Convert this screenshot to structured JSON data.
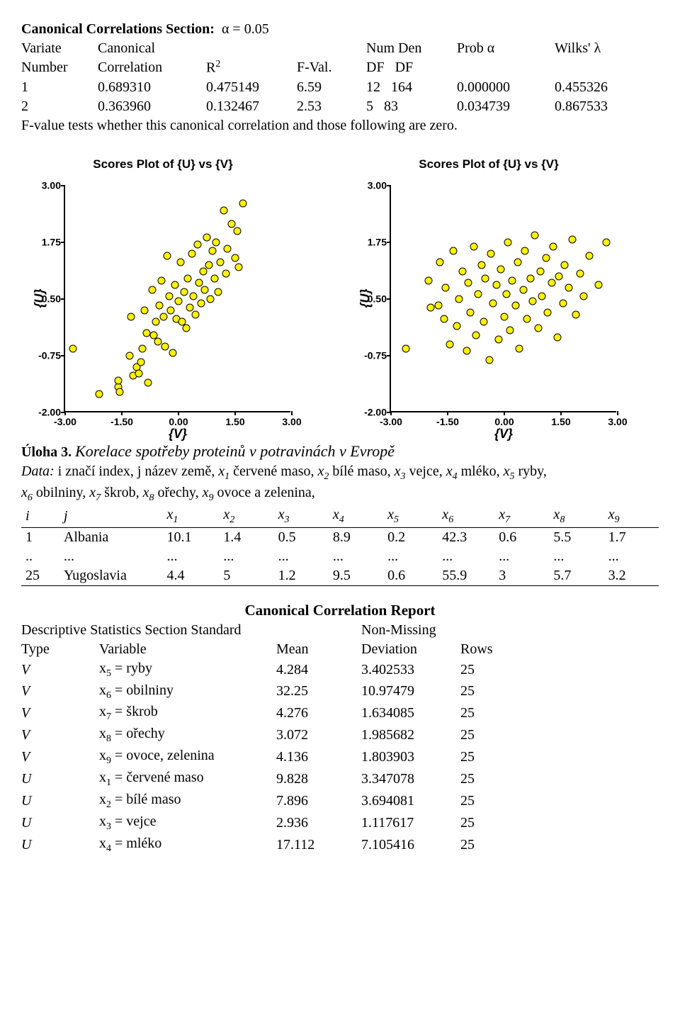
{
  "section1": {
    "title_prefix": "Canonical Correlations Section:",
    "alpha": "α = 0.05",
    "headers": {
      "variate": "Variate",
      "canonical": "Canonical",
      "numden": "Num Den",
      "proba": "Prob α",
      "wilks": "Wilks' λ",
      "number": "Number",
      "correlation": "Correlation",
      "r2": "R",
      "r2sup": "2",
      "fval": "F-Val.",
      "df1": "DF",
      "df2": "DF"
    },
    "rows": [
      {
        "n": "1",
        "corr": "0.689310",
        "r2": "0.475149",
        "f": "6.59",
        "df1": "12",
        "df2": "164",
        "p": "0.000000",
        "w": "0.455326"
      },
      {
        "n": "2",
        "corr": "0.363960",
        "r2": "0.132467",
        "f": "2.53",
        "df1": "5",
        "df2": "83",
        "p": "0.034739",
        "w": "0.867533"
      }
    ],
    "footnote": "F-value tests whether this canonical correlation and those following are zero."
  },
  "charts": {
    "title": "Scores Plot of {U} vs {V}",
    "ylabel": "{U}",
    "xlabel": "{V}",
    "yticks": [
      "3.00",
      "1.75",
      "0.50",
      "-0.75",
      "-2.00"
    ],
    "xticks": [
      "-3.00",
      "-1.50",
      "0.00",
      "1.50",
      "3.00"
    ],
    "xlim": [
      -3.0,
      3.0
    ],
    "ylim": [
      -2.0,
      3.0
    ],
    "marker_fill": "#fff200",
    "marker_stroke": "#000000",
    "background": "#ffffff",
    "chart1_points": [
      [
        -2.8,
        -0.6
      ],
      [
        -2.1,
        -1.6
      ],
      [
        -1.6,
        -1.45
      ],
      [
        -1.6,
        -1.3
      ],
      [
        -1.55,
        -1.55
      ],
      [
        -1.3,
        -0.75
      ],
      [
        -1.25,
        0.1
      ],
      [
        -1.2,
        -1.2
      ],
      [
        -1.1,
        -1.0
      ],
      [
        -1.05,
        -1.15
      ],
      [
        -1.0,
        -0.9
      ],
      [
        -0.95,
        -0.6
      ],
      [
        -0.9,
        0.25
      ],
      [
        -0.85,
        -0.25
      ],
      [
        -0.8,
        -1.35
      ],
      [
        -0.7,
        0.7
      ],
      [
        -0.65,
        -0.3
      ],
      [
        -0.6,
        0.0
      ],
      [
        -0.55,
        -0.45
      ],
      [
        -0.5,
        0.35
      ],
      [
        -0.45,
        0.9
      ],
      [
        -0.4,
        0.1
      ],
      [
        -0.35,
        -0.55
      ],
      [
        -0.3,
        1.45
      ],
      [
        -0.25,
        0.55
      ],
      [
        -0.2,
        0.25
      ],
      [
        -0.15,
        -0.7
      ],
      [
        -0.1,
        0.8
      ],
      [
        -0.05,
        0.05
      ],
      [
        0.0,
        0.45
      ],
      [
        0.05,
        1.3
      ],
      [
        0.1,
        0.0
      ],
      [
        0.15,
        0.65
      ],
      [
        0.2,
        -0.15
      ],
      [
        0.25,
        0.95
      ],
      [
        0.3,
        0.3
      ],
      [
        0.35,
        1.5
      ],
      [
        0.4,
        0.55
      ],
      [
        0.45,
        0.15
      ],
      [
        0.5,
        1.7
      ],
      [
        0.55,
        0.85
      ],
      [
        0.6,
        0.4
      ],
      [
        0.65,
        1.1
      ],
      [
        0.7,
        0.7
      ],
      [
        0.75,
        1.85
      ],
      [
        0.8,
        1.25
      ],
      [
        0.85,
        0.5
      ],
      [
        0.9,
        1.55
      ],
      [
        0.95,
        0.95
      ],
      [
        1.0,
        1.75
      ],
      [
        1.05,
        0.65
      ],
      [
        1.1,
        1.3
      ],
      [
        1.2,
        2.45
      ],
      [
        1.25,
        1.05
      ],
      [
        1.3,
        1.6
      ],
      [
        1.4,
        2.15
      ],
      [
        1.5,
        1.4
      ],
      [
        1.55,
        2.0
      ],
      [
        1.6,
        1.2
      ],
      [
        1.7,
        2.6
      ]
    ],
    "chart2_points": [
      [
        -2.6,
        -0.6
      ],
      [
        -2.0,
        0.9
      ],
      [
        -1.95,
        0.3
      ],
      [
        -1.75,
        0.35
      ],
      [
        -1.7,
        1.3
      ],
      [
        -1.6,
        0.05
      ],
      [
        -1.55,
        0.75
      ],
      [
        -1.45,
        -0.5
      ],
      [
        -1.35,
        1.55
      ],
      [
        -1.25,
        -0.1
      ],
      [
        -1.2,
        0.5
      ],
      [
        -1.1,
        1.1
      ],
      [
        -1.0,
        -0.65
      ],
      [
        -0.95,
        0.85
      ],
      [
        -0.9,
        0.2
      ],
      [
        -0.8,
        1.65
      ],
      [
        -0.75,
        -0.3
      ],
      [
        -0.7,
        0.6
      ],
      [
        -0.6,
        1.25
      ],
      [
        -0.55,
        0.0
      ],
      [
        -0.5,
        0.95
      ],
      [
        -0.4,
        -0.85
      ],
      [
        -0.35,
        1.5
      ],
      [
        -0.3,
        0.4
      ],
      [
        -0.2,
        0.8
      ],
      [
        -0.15,
        -0.4
      ],
      [
        -0.1,
        1.15
      ],
      [
        0.0,
        0.1
      ],
      [
        0.05,
        0.6
      ],
      [
        0.1,
        1.75
      ],
      [
        0.15,
        -0.2
      ],
      [
        0.2,
        0.9
      ],
      [
        0.3,
        0.35
      ],
      [
        0.35,
        1.3
      ],
      [
        0.4,
        -0.6
      ],
      [
        0.5,
        0.7
      ],
      [
        0.55,
        1.55
      ],
      [
        0.6,
        0.05
      ],
      [
        0.7,
        0.95
      ],
      [
        0.75,
        0.45
      ],
      [
        0.8,
        1.9
      ],
      [
        0.9,
        -0.15
      ],
      [
        0.95,
        1.1
      ],
      [
        1.0,
        0.55
      ],
      [
        1.1,
        1.4
      ],
      [
        1.15,
        0.2
      ],
      [
        1.25,
        0.85
      ],
      [
        1.3,
        1.65
      ],
      [
        1.4,
        -0.35
      ],
      [
        1.45,
        1.0
      ],
      [
        1.55,
        0.4
      ],
      [
        1.6,
        1.25
      ],
      [
        1.7,
        0.75
      ],
      [
        1.8,
        1.8
      ],
      [
        1.9,
        0.15
      ],
      [
        2.0,
        1.05
      ],
      [
        2.1,
        0.55
      ],
      [
        2.25,
        1.45
      ],
      [
        2.5,
        0.8
      ],
      [
        2.7,
        1.75
      ]
    ]
  },
  "task3": {
    "heading_bold": "Úloha 3.",
    "heading_italic": "Korelace spotřeby proteinů v potravinách v Evropě",
    "desc_label": "Data: ",
    "desc": "i značí index, j název země, x",
    "vars": [
      {
        "s": "1",
        "t": " červené maso, "
      },
      {
        "s": "2",
        "t": " bílé maso, "
      },
      {
        "s": "3",
        "t": " vejce, "
      },
      {
        "s": "4",
        "t": " mléko, "
      },
      {
        "s": "5",
        "t": " ryby, "
      },
      {
        "s": "6",
        "t": " obilniny, "
      },
      {
        "s": "7",
        "t": " škrob, "
      },
      {
        "s": "8",
        "t": " ořechy, "
      },
      {
        "s": "9",
        "t": " ovoce a zelenina,"
      }
    ],
    "cols": [
      "i",
      "j",
      "x1",
      "x2",
      "x3",
      "x4",
      "x5",
      "x6",
      "x7",
      "x8",
      "x9"
    ],
    "rows": [
      [
        "1",
        "Albania",
        "10.1",
        "1.4",
        "0.5",
        "8.9",
        "0.2",
        "42.3",
        "0.6",
        "5.5",
        "1.7"
      ],
      [
        "..",
        "...",
        "...",
        "...",
        "...",
        "...",
        "...",
        "...",
        "...",
        "...",
        "..."
      ],
      [
        "25",
        "Yugoslavia",
        "4.4",
        "5",
        "1.2",
        "9.5",
        "0.6",
        "55.9",
        "3",
        "5.7",
        "3.2"
      ]
    ]
  },
  "report": {
    "title": "Canonical Correlation Report",
    "subtitle1": "Descriptive Statistics Section Standard",
    "subtitle2": "Non-Missing",
    "headers": {
      "type": "Type",
      "variable": "Variable",
      "mean": "Mean",
      "dev": "Deviation",
      "rows": "Rows"
    },
    "rows": [
      {
        "t": "V",
        "v": "x",
        "s": "5",
        "eq": " = ryby",
        "m": "4.284",
        "d": "3.402533",
        "r": "25"
      },
      {
        "t": "V",
        "v": "x",
        "s": "6",
        "eq": " = obilniny",
        "m": "32.25",
        "d": "10.97479",
        "r": "25"
      },
      {
        "t": "V",
        "v": "x",
        "s": "7",
        "eq": " = škrob",
        "m": "4.276",
        "d": "1.634085",
        "r": "25"
      },
      {
        "t": "V",
        "v": "x",
        "s": "8",
        "eq": " = ořechy",
        "m": "3.072",
        "d": "1.985682",
        "r": "25"
      },
      {
        "t": "V",
        "v": "x",
        "s": "9",
        "eq": " = ovoce, zelenina",
        "m": "4.136",
        "d": "1.803903",
        "r": "25"
      },
      {
        "t": "U",
        "v": "x",
        "s": "1",
        "eq": " = červené maso",
        "m": "9.828",
        "d": "3.347078",
        "r": "25"
      },
      {
        "t": "U",
        "v": "x",
        "s": "2",
        "eq": " = bílé maso",
        "m": "7.896",
        "d": "3.694081",
        "r": "25"
      },
      {
        "t": "U",
        "v": "x",
        "s": "3",
        "eq": " = vejce",
        "m": "2.936",
        "d": "1.117617",
        "r": "25"
      },
      {
        "t": "U",
        "v": "x",
        "s": "4",
        "eq": " = mléko",
        "m": "17.112",
        "d": "7.105416",
        "r": "25"
      }
    ]
  }
}
